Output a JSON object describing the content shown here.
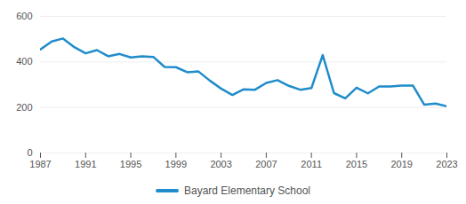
{
  "chart_data": {
    "type": "line",
    "x": [
      1987,
      1988,
      1989,
      1990,
      1991,
      1992,
      1993,
      1994,
      1995,
      1996,
      1997,
      1998,
      1999,
      2000,
      2001,
      2002,
      2003,
      2004,
      2005,
      2006,
      2007,
      2008,
      2009,
      2010,
      2011,
      2012,
      2013,
      2014,
      2015,
      2016,
      2017,
      2018,
      2019,
      2020,
      2021,
      2022,
      2023
    ],
    "series": [
      {
        "name": "Bayard Elementary School",
        "color": "#1f8ccb",
        "values": [
          455,
          490,
          503,
          465,
          438,
          452,
          425,
          435,
          420,
          425,
          422,
          378,
          377,
          355,
          358,
          318,
          283,
          255,
          280,
          278,
          308,
          320,
          295,
          278,
          285,
          430,
          263,
          240,
          287,
          262,
          292,
          292,
          296,
          296,
          212,
          217,
          205
        ]
      }
    ],
    "xlim": [
      1987,
      2023
    ],
    "xticks": [
      1987,
      1991,
      1995,
      1999,
      2003,
      2007,
      2011,
      2015,
      2019,
      2023
    ],
    "ylim": [
      0,
      600
    ],
    "yticks": [
      0,
      200,
      400,
      600
    ],
    "grid": true,
    "legend": "bottom"
  }
}
